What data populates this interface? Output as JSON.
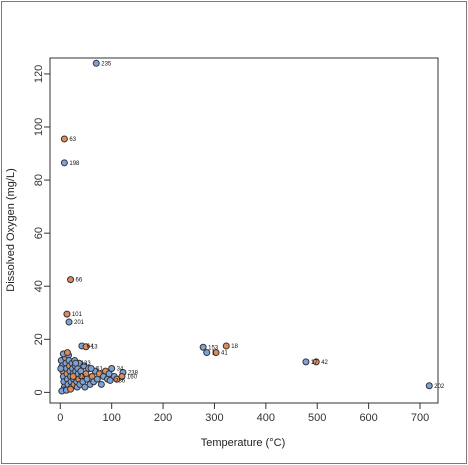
{
  "chart_data": {
    "type": "scatter",
    "title": "",
    "xlabel": "Temperature (°C)",
    "ylabel": "Dissolved Oxygen (mg/L)",
    "xlim": [
      -20,
      735
    ],
    "ylim": [
      -4,
      126
    ],
    "xticks": [
      0,
      100,
      200,
      300,
      400,
      500,
      600,
      700
    ],
    "yticks": [
      0,
      20,
      40,
      60,
      80,
      100,
      120
    ],
    "grid": false,
    "legend": "none",
    "colors": {
      "blue": "#7ea2d8",
      "orange": "#e08b5a",
      "outline": "#333333"
    },
    "labeled_points": [
      {
        "x": 70,
        "y": 124,
        "label": "235",
        "color": "blue"
      },
      {
        "x": 8,
        "y": 95.5,
        "label": "63",
        "color": "orange"
      },
      {
        "x": 8,
        "y": 86.5,
        "label": "198",
        "color": "blue"
      },
      {
        "x": 20,
        "y": 42.5,
        "label": "66",
        "color": "orange"
      },
      {
        "x": 13,
        "y": 29.5,
        "label": "101",
        "color": "orange"
      },
      {
        "x": 17,
        "y": 26.5,
        "label": "201",
        "color": "blue"
      },
      {
        "x": 42,
        "y": 17.5,
        "label": "64",
        "color": "blue"
      },
      {
        "x": 50,
        "y": 17.2,
        "label": "13",
        "color": "orange"
      },
      {
        "x": 278,
        "y": 17,
        "label": "153",
        "color": "blue"
      },
      {
        "x": 323,
        "y": 17.5,
        "label": "18",
        "color": "orange"
      },
      {
        "x": 285,
        "y": 15,
        "label": "1",
        "color": "blue"
      },
      {
        "x": 303,
        "y": 15,
        "label": "41",
        "color": "orange"
      },
      {
        "x": 478,
        "y": 11.5,
        "label": "17",
        "color": "blue"
      },
      {
        "x": 498,
        "y": 11.5,
        "label": "42",
        "color": "orange"
      },
      {
        "x": 718,
        "y": 2.5,
        "label": "202",
        "color": "blue"
      },
      {
        "x": 122,
        "y": 7.5,
        "label": "238",
        "color": "blue"
      },
      {
        "x": 120,
        "y": 6,
        "label": "160",
        "color": "orange"
      },
      {
        "x": 100,
        "y": 9,
        "label": "34",
        "color": "blue"
      },
      {
        "x": 97,
        "y": 4.5,
        "label": "236",
        "color": "blue"
      },
      {
        "x": 30,
        "y": 11,
        "label": "133",
        "color": "blue"
      },
      {
        "x": 25,
        "y": 6,
        "label": "22",
        "color": "orange"
      },
      {
        "x": 60,
        "y": 9,
        "label": "51",
        "color": "blue"
      }
    ],
    "cluster_points": [
      {
        "x": 2,
        "y": 12,
        "color": "blue"
      },
      {
        "x": 4,
        "y": 10,
        "color": "blue"
      },
      {
        "x": 5,
        "y": 8,
        "color": "orange"
      },
      {
        "x": 6,
        "y": 6,
        "color": "blue"
      },
      {
        "x": 7,
        "y": 4,
        "color": "blue"
      },
      {
        "x": 8,
        "y": 2,
        "color": "blue"
      },
      {
        "x": 9,
        "y": 1,
        "color": "blue"
      },
      {
        "x": 10,
        "y": 13,
        "color": "orange"
      },
      {
        "x": 11,
        "y": 11,
        "color": "blue"
      },
      {
        "x": 12,
        "y": 9,
        "color": "blue"
      },
      {
        "x": 13,
        "y": 7,
        "color": "orange"
      },
      {
        "x": 14,
        "y": 5,
        "color": "blue"
      },
      {
        "x": 15,
        "y": 3,
        "color": "blue"
      },
      {
        "x": 16,
        "y": 14,
        "color": "blue"
      },
      {
        "x": 17,
        "y": 12,
        "color": "blue"
      },
      {
        "x": 18,
        "y": 10,
        "color": "orange"
      },
      {
        "x": 19,
        "y": 8,
        "color": "blue"
      },
      {
        "x": 20,
        "y": 6,
        "color": "blue"
      },
      {
        "x": 21,
        "y": 4,
        "color": "blue"
      },
      {
        "x": 22,
        "y": 2,
        "color": "orange"
      },
      {
        "x": 23,
        "y": 11,
        "color": "blue"
      },
      {
        "x": 24,
        "y": 9,
        "color": "blue"
      },
      {
        "x": 25,
        "y": 7,
        "color": "blue"
      },
      {
        "x": 26,
        "y": 5,
        "color": "blue"
      },
      {
        "x": 27,
        "y": 3,
        "color": "orange"
      },
      {
        "x": 28,
        "y": 12,
        "color": "blue"
      },
      {
        "x": 29,
        "y": 10,
        "color": "blue"
      },
      {
        "x": 30,
        "y": 8,
        "color": "blue"
      },
      {
        "x": 31,
        "y": 6,
        "color": "orange"
      },
      {
        "x": 32,
        "y": 4,
        "color": "blue"
      },
      {
        "x": 33,
        "y": 2,
        "color": "blue"
      },
      {
        "x": 34,
        "y": 9,
        "color": "blue"
      },
      {
        "x": 35,
        "y": 7,
        "color": "blue"
      },
      {
        "x": 36,
        "y": 5,
        "color": "orange"
      },
      {
        "x": 37,
        "y": 11,
        "color": "blue"
      },
      {
        "x": 38,
        "y": 3,
        "color": "blue"
      },
      {
        "x": 40,
        "y": 8,
        "color": "blue"
      },
      {
        "x": 42,
        "y": 6,
        "color": "orange"
      },
      {
        "x": 44,
        "y": 4,
        "color": "blue"
      },
      {
        "x": 46,
        "y": 10,
        "color": "blue"
      },
      {
        "x": 48,
        "y": 2,
        "color": "blue"
      },
      {
        "x": 50,
        "y": 7,
        "color": "orange"
      },
      {
        "x": 52,
        "y": 5,
        "color": "blue"
      },
      {
        "x": 55,
        "y": 9,
        "color": "blue"
      },
      {
        "x": 58,
        "y": 3,
        "color": "blue"
      },
      {
        "x": 62,
        "y": 6,
        "color": "orange"
      },
      {
        "x": 65,
        "y": 4,
        "color": "blue"
      },
      {
        "x": 68,
        "y": 8,
        "color": "blue"
      },
      {
        "x": 72,
        "y": 5,
        "color": "blue"
      },
      {
        "x": 76,
        "y": 7,
        "color": "orange"
      },
      {
        "x": 80,
        "y": 3,
        "color": "blue"
      },
      {
        "x": 84,
        "y": 6,
        "color": "blue"
      },
      {
        "x": 88,
        "y": 8,
        "color": "orange"
      },
      {
        "x": 92,
        "y": 5,
        "color": "blue"
      },
      {
        "x": 95,
        "y": 7,
        "color": "blue"
      },
      {
        "x": 105,
        "y": 6,
        "color": "blue"
      },
      {
        "x": 110,
        "y": 5,
        "color": "orange"
      },
      {
        "x": 3,
        "y": 0.5,
        "color": "blue"
      },
      {
        "x": 12,
        "y": 0.8,
        "color": "blue"
      },
      {
        "x": 20,
        "y": 1.2,
        "color": "orange"
      },
      {
        "x": 6,
        "y": 14.5,
        "color": "blue"
      },
      {
        "x": 14,
        "y": 15,
        "color": "orange"
      },
      {
        "x": 1,
        "y": 9,
        "color": "blue"
      }
    ]
  }
}
